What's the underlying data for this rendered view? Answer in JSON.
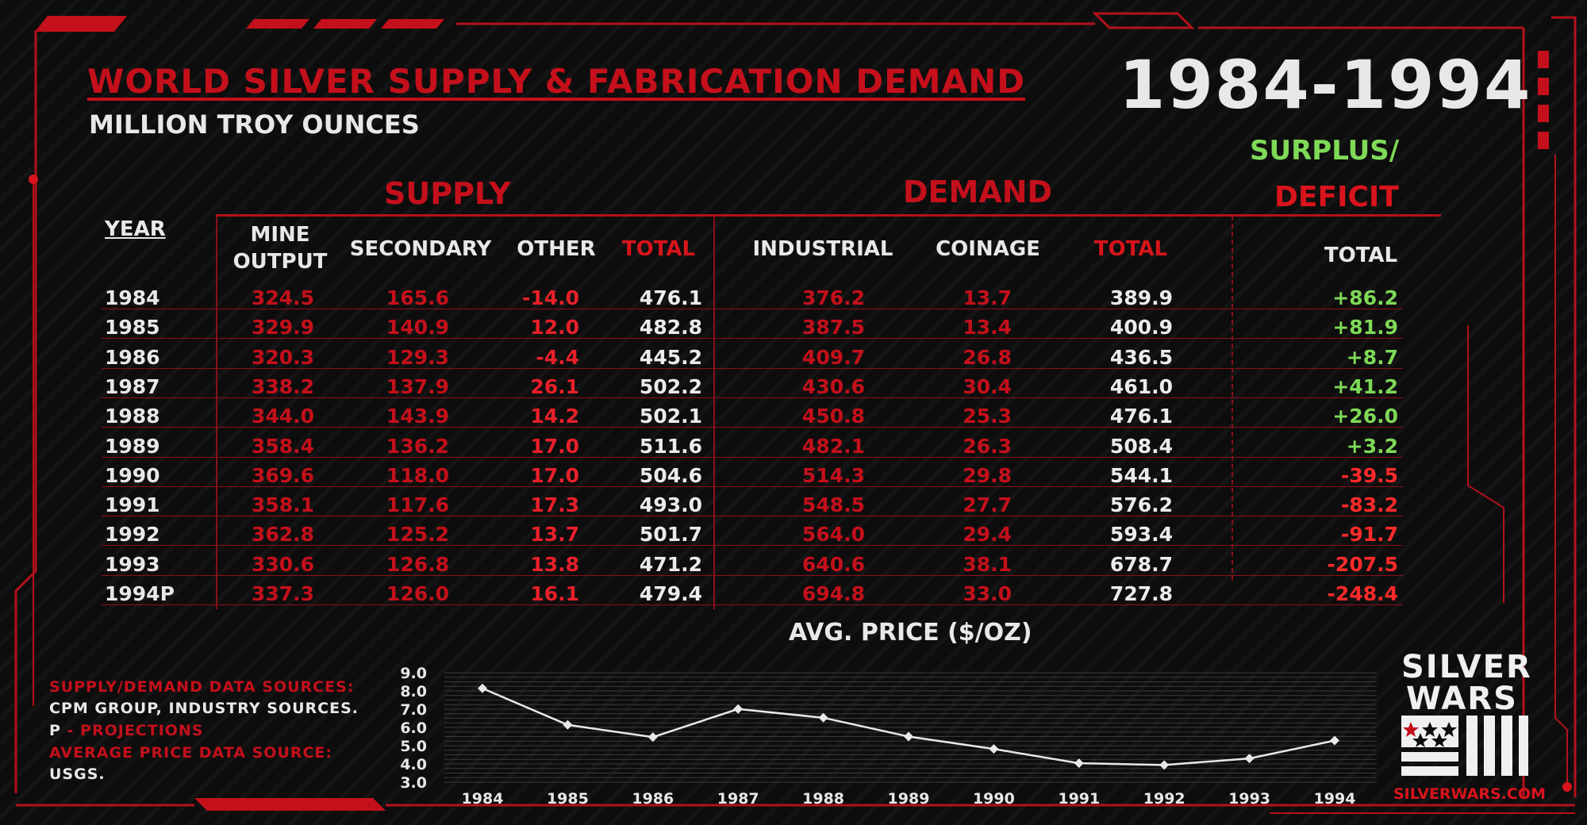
{
  "header": {
    "title": "WORLD SILVER SUPPLY & FABRICATION DEMAND",
    "year_range": "1984-1994",
    "subtitle": "MILLION TROY OUNCES",
    "surplus_label_1": "SURPLUS/",
    "surplus_label_2": "DEFICIT"
  },
  "table": {
    "supply_label": "SUPPLY",
    "demand_label": "DEMAND",
    "columns": {
      "year": "YEAR",
      "mine_1": "MINE",
      "mine_2": "OUTPUT",
      "secondary": "SECONDARY",
      "other": "OTHER",
      "supply_total": "TOTAL",
      "industrial": "INDUSTRIAL",
      "coinage": "COINAGE",
      "demand_total": "TOTAL",
      "balance_total": "TOTAL"
    },
    "rows": [
      {
        "year": "1984",
        "mine": "324.5",
        "secondary": "165.6",
        "other": "-14.0",
        "supply_total": "476.1",
        "industrial": "376.2",
        "coinage": "13.7",
        "demand_total": "389.9",
        "balance": "+86.2"
      },
      {
        "year": "1985",
        "mine": "329.9",
        "secondary": "140.9",
        "other": "12.0",
        "supply_total": "482.8",
        "industrial": "387.5",
        "coinage": "13.4",
        "demand_total": "400.9",
        "balance": "+81.9"
      },
      {
        "year": "1986",
        "mine": "320.3",
        "secondary": "129.3",
        "other": "-4.4",
        "supply_total": "445.2",
        "industrial": "409.7",
        "coinage": "26.8",
        "demand_total": "436.5",
        "balance": "+8.7"
      },
      {
        "year": "1987",
        "mine": "338.2",
        "secondary": "137.9",
        "other": "26.1",
        "supply_total": "502.2",
        "industrial": "430.6",
        "coinage": "30.4",
        "demand_total": "461.0",
        "balance": "+41.2"
      },
      {
        "year": "1988",
        "mine": "344.0",
        "secondary": "143.9",
        "other": "14.2",
        "supply_total": "502.1",
        "industrial": "450.8",
        "coinage": "25.3",
        "demand_total": "476.1",
        "balance": "+26.0"
      },
      {
        "year": "1989",
        "mine": "358.4",
        "secondary": "136.2",
        "other": "17.0",
        "supply_total": "511.6",
        "industrial": "482.1",
        "coinage": "26.3",
        "demand_total": "508.4",
        "balance": "+3.2"
      },
      {
        "year": "1990",
        "mine": "369.6",
        "secondary": "118.0",
        "other": "17.0",
        "supply_total": "504.6",
        "industrial": "514.3",
        "coinage": "29.8",
        "demand_total": "544.1",
        "balance": "-39.5"
      },
      {
        "year": "1991",
        "mine": "358.1",
        "secondary": "117.6",
        "other": "17.3",
        "supply_total": "493.0",
        "industrial": "548.5",
        "coinage": "27.7",
        "demand_total": "576.2",
        "balance": "-83.2"
      },
      {
        "year": "1992",
        "mine": "362.8",
        "secondary": "125.2",
        "other": "13.7",
        "supply_total": "501.7",
        "industrial": "564.0",
        "coinage": "29.4",
        "demand_total": "593.4",
        "balance": "-91.7"
      },
      {
        "year": "1993",
        "mine": "330.6",
        "secondary": "126.8",
        "other": "13.8",
        "supply_total": "471.2",
        "industrial": "640.6",
        "coinage": "38.1",
        "demand_total": "678.7",
        "balance": "-207.5"
      },
      {
        "year": "1994P",
        "mine": "337.3",
        "secondary": "126.0",
        "other": "16.1",
        "supply_total": "479.4",
        "industrial": "694.8",
        "coinage": "33.0",
        "demand_total": "727.8",
        "balance": "-248.4"
      }
    ]
  },
  "chart_data": {
    "type": "line",
    "title": "AVG. PRICE ($/OZ)",
    "x": [
      "1984",
      "1985",
      "1986",
      "1987",
      "1988",
      "1989",
      "1990",
      "1991",
      "1992",
      "1993",
      "1994"
    ],
    "y_ticks": [
      "9.0",
      "8.0",
      "7.0",
      "6.0",
      "5.0",
      "4.0",
      "3.0"
    ],
    "ylim": [
      3.0,
      9.0
    ],
    "series": [
      {
        "values": [
          8.14,
          6.14,
          5.47,
          7.01,
          6.53,
          5.5,
          4.82,
          4.04,
          3.94,
          4.3,
          5.28
        ]
      }
    ],
    "line_color": "#e8e8e8",
    "grid": true
  },
  "notes": {
    "line1": "SUPPLY/DEMAND DATA SOURCES:",
    "line2": "CPM GROUP, INDUSTRY SOURCES.",
    "line3_p": "P",
    "line3_rest": " - PROJECTIONS",
    "line4": "AVERAGE PRICE DATA SOURCE:",
    "line5": "USGS."
  },
  "logo": {
    "line1": "SILVER",
    "line2": "WARS",
    "url": "SILVERWARS.COM"
  },
  "colors": {
    "accent_red": "#c4101b",
    "surplus_green": "#7ed957",
    "deficit_red": "#ff2a2a"
  }
}
